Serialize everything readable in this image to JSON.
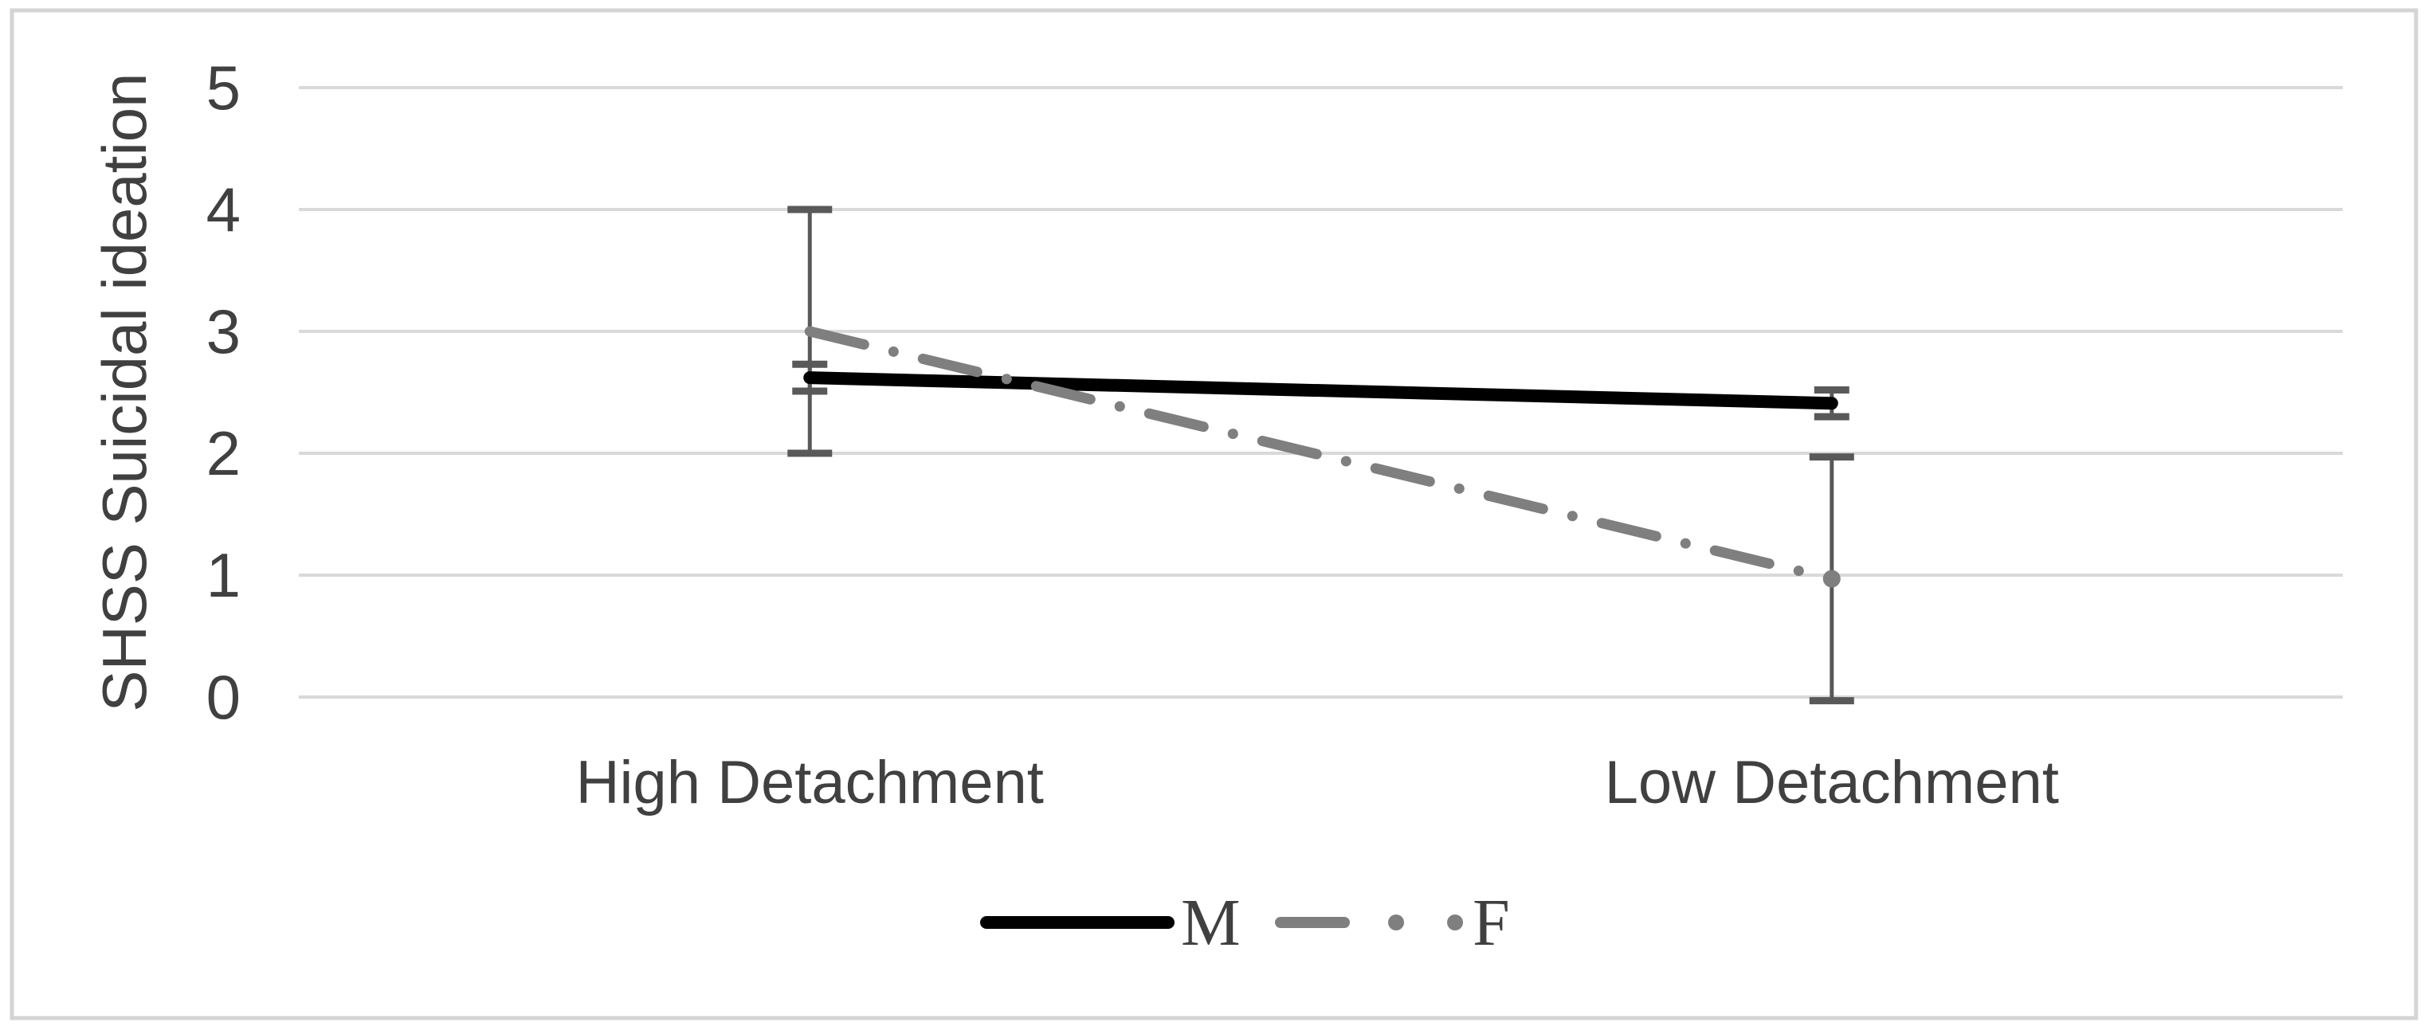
{
  "chart_data": {
    "type": "line",
    "title": "",
    "xlabel": "",
    "ylabel": "SHSS Suicidal ideation",
    "categories": [
      "High Detachment",
      "Low Detachment"
    ],
    "series": [
      {
        "name": "M",
        "values": [
          2.62,
          2.41
        ],
        "error_plus": [
          0.11,
          0.11
        ],
        "error_minus": [
          0.11,
          0.11
        ],
        "color": "#000000",
        "line_style": "solid",
        "line_width": 16
      },
      {
        "name": "F",
        "values": [
          3.0,
          0.97
        ],
        "error_plus": [
          1.0,
          1.0
        ],
        "error_minus": [
          1.0,
          1.0
        ],
        "color": "#7f7f7f",
        "line_style": "dash-dot",
        "line_width": 13
      }
    ],
    "ylim": [
      0,
      5
    ],
    "yticks": [
      5,
      4,
      3,
      2,
      1,
      0
    ],
    "grid": true,
    "legend_position": "bottom",
    "colors": {
      "text": "#404040",
      "gridline": "#d9d9d9",
      "error_bar": "#595959",
      "frame": "#d4d4d4",
      "background": "#ffffff"
    }
  }
}
